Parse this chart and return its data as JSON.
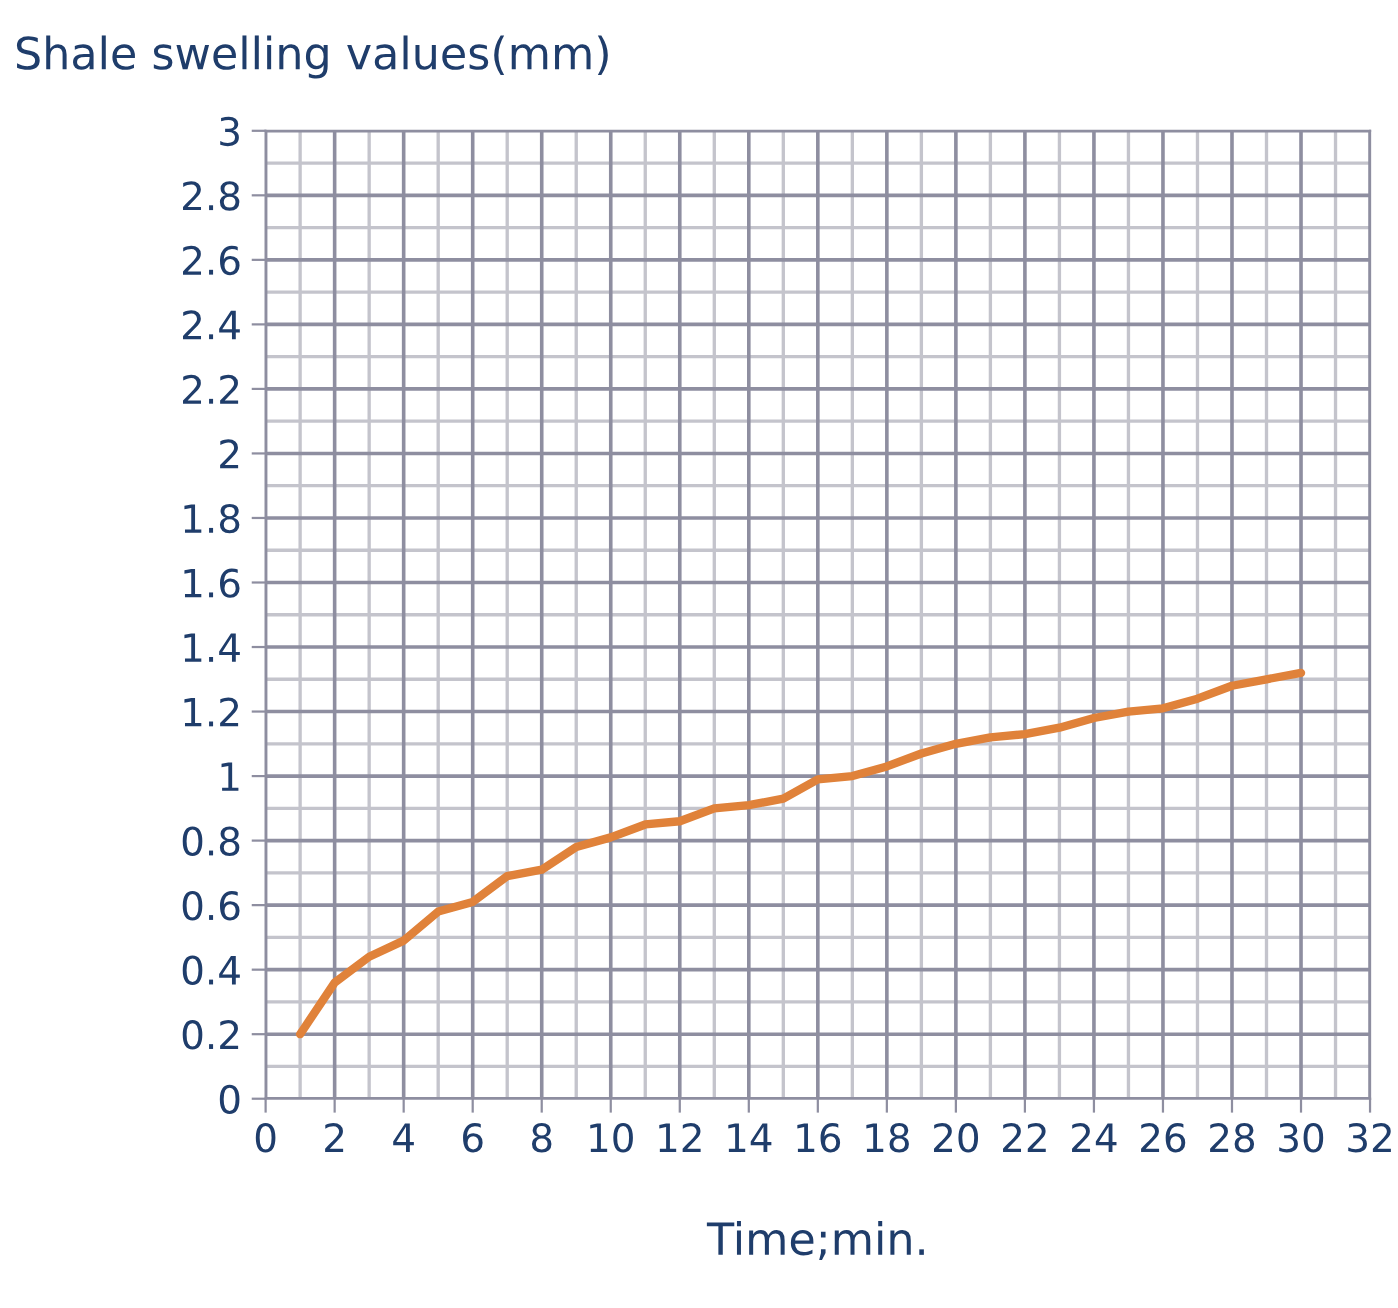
{
  "chart_data": {
    "type": "line",
    "ylabel": "Shale swelling values(mm)",
    "xlabel": "Time;min.",
    "x": [
      1,
      2,
      3,
      4,
      5,
      6,
      7,
      8,
      9,
      10,
      11,
      12,
      13,
      14,
      15,
      16,
      17,
      18,
      19,
      20,
      21,
      22,
      23,
      24,
      25,
      26,
      27,
      28,
      29,
      30
    ],
    "series": [
      {
        "color": "#e0823a",
        "values": [
          0.2,
          0.36,
          0.44,
          0.49,
          0.58,
          0.61,
          0.69,
          0.71,
          0.78,
          0.81,
          0.85,
          0.86,
          0.9,
          0.91,
          0.93,
          0.99,
          1.0,
          1.03,
          1.07,
          1.1,
          1.12,
          1.13,
          1.15,
          1.18,
          1.2,
          1.21,
          1.24,
          1.28,
          1.3,
          1.32
        ]
      }
    ],
    "xlim": [
      0,
      32
    ],
    "xticks": [
      0,
      2,
      4,
      6,
      8,
      10,
      12,
      14,
      16,
      18,
      20,
      22,
      24,
      26,
      28,
      30,
      32
    ],
    "ylim": [
      0,
      3
    ],
    "yticks": [
      0,
      {
        "value": 0.2,
        "label": "0.2"
      },
      {
        "value": 0.4,
        "label": "0.4"
      },
      {
        "value": 0.6,
        "label": "0.6"
      },
      {
        "value": 0.8,
        "label": "0.8"
      },
      1,
      {
        "value": 1.2,
        "label": "1.2"
      },
      {
        "value": 1.4,
        "label": "1.4"
      },
      {
        "value": 1.6,
        "label": "1.6"
      },
      {
        "value": 1.8,
        "label": "1.8"
      },
      2,
      {
        "value": 2.2,
        "label": "2.2"
      },
      {
        "value": 2.4,
        "label": "2.4"
      },
      {
        "value": 2.6,
        "label": "2.6"
      },
      {
        "value": 2.8,
        "label": "2.8"
      },
      3
    ],
    "grid": true,
    "marker": "none",
    "line_style": "solid",
    "legend": false
  }
}
